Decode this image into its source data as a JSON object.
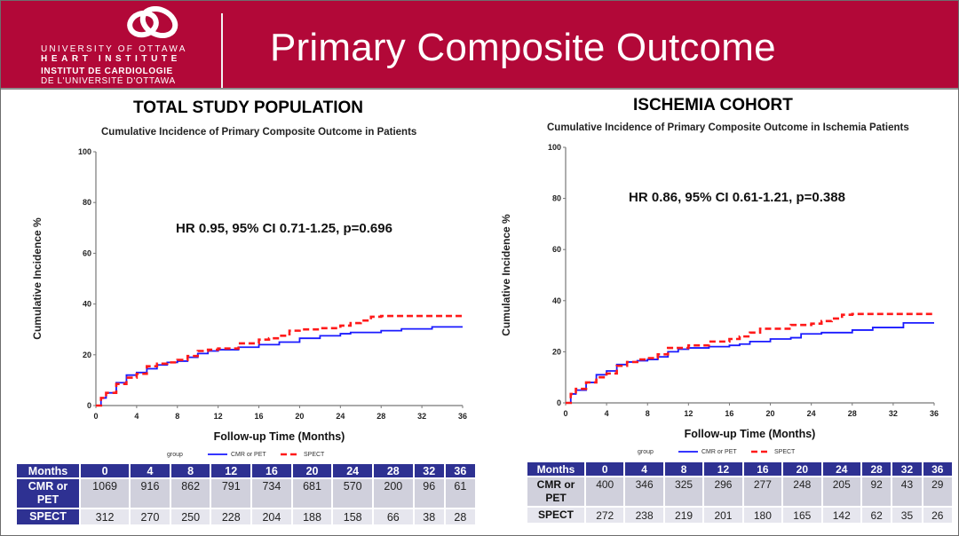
{
  "header": {
    "logo_lines": [
      "UNIVERSITY OF OTTAWA",
      "HEART INSTITUTE",
      "INSTITUT DE CARDIOLOGIE",
      "DE L'UNIVERSITÉ D'OTTAWA"
    ],
    "logo_icon": "heart-rings-logo-icon",
    "title": "Primary Composite Outcome",
    "brand_color": "#b20838"
  },
  "sections": [
    {
      "title": "TOTAL STUDY POPULATION",
      "risk_table": {
        "header": [
          "Months",
          "0",
          "4",
          "8",
          "12",
          "16",
          "20",
          "24",
          "28",
          "32",
          "36"
        ],
        "rows": [
          {
            "label": "CMR or PET",
            "values": [
              "1069",
              "916",
              "862",
              "791",
              "734",
              "681",
              "570",
              "200",
              "96",
              "61"
            ]
          },
          {
            "label": "SPECT",
            "values": [
              "312",
              "270",
              "250",
              "228",
              "204",
              "188",
              "158",
              "66",
              "38",
              "28"
            ]
          }
        ]
      }
    },
    {
      "title": "ISCHEMIA COHORT",
      "risk_table": {
        "header": [
          "Months",
          "0",
          "4",
          "8",
          "12",
          "16",
          "20",
          "24",
          "28",
          "32",
          "36"
        ],
        "rows": [
          {
            "label": "CMR or PET",
            "values": [
              "400",
              "346",
              "325",
              "296",
              "277",
              "248",
              "205",
              "92",
              "43",
              "29"
            ]
          },
          {
            "label": "SPECT",
            "values": [
              "272",
              "238",
              "219",
              "201",
              "180",
              "165",
              "142",
              "62",
              "35",
              "26"
            ]
          }
        ]
      }
    }
  ],
  "chart_data": [
    {
      "type": "line",
      "title": "Cumulative Incidence of Primary Composite Outcome in Patients",
      "xlabel": "Follow-up Time (Months)",
      "ylabel": "Cumulative Incidence %",
      "xlim": [
        0,
        36
      ],
      "ylim": [
        0,
        100
      ],
      "xticks": [
        0,
        4,
        8,
        12,
        16,
        20,
        24,
        28,
        32,
        36
      ],
      "yticks": [
        0,
        20,
        40,
        60,
        80,
        100
      ],
      "grid": false,
      "annotation": "HR 0.95, 95% CI 0.71-1.25, p=0.696",
      "legend": {
        "title": "group",
        "position": "bottom"
      },
      "series": [
        {
          "name": "CMR or PET",
          "color": "#1a1aff",
          "style": "solid",
          "x": [
            0,
            0.5,
            1,
            2,
            3,
            4,
            5,
            6,
            7,
            8,
            9,
            10,
            11,
            12,
            14,
            16,
            18,
            20,
            22,
            24,
            25,
            27,
            28,
            30,
            33,
            36
          ],
          "y": [
            0,
            3,
            5,
            9,
            12,
            13,
            14.5,
            16,
            17,
            17.5,
            19,
            20.5,
            21.5,
            22,
            23,
            24,
            25,
            26.5,
            27.5,
            28.3,
            28.8,
            28.8,
            29.5,
            30.2,
            31,
            31
          ]
        },
        {
          "name": "SPECT",
          "color": "#ff1a1a",
          "style": "dashed",
          "x": [
            0,
            0.5,
            1,
            2,
            3,
            4,
            5,
            6,
            7,
            8,
            9,
            10,
            11,
            12,
            14,
            16,
            17,
            18,
            19,
            20,
            22,
            24,
            25,
            26,
            27,
            28,
            36
          ],
          "y": [
            0,
            3,
            5,
            8.5,
            11,
            12.5,
            15.5,
            16.5,
            17,
            18,
            19.5,
            21.5,
            22,
            22.5,
            24.5,
            26,
            26.5,
            27.5,
            29.5,
            30,
            30.5,
            31.5,
            32.5,
            33.5,
            35,
            35.3,
            35.3
          ]
        }
      ]
    },
    {
      "type": "line",
      "title": "Cumulative Incidence of Primary Composite Outcome in Ischemia Patients",
      "xlabel": "Follow-up Time (Months)",
      "ylabel": "Cumulative Incidence %",
      "xlim": [
        0,
        36
      ],
      "ylim": [
        0,
        100
      ],
      "xticks": [
        0,
        4,
        8,
        12,
        16,
        20,
        24,
        28,
        32,
        36
      ],
      "yticks": [
        0,
        20,
        40,
        60,
        80,
        100
      ],
      "grid": false,
      "annotation": "HR 0.86, 95% CI 0.61-1.21, p=0.388",
      "legend": {
        "title": "group",
        "position": "bottom"
      },
      "series": [
        {
          "name": "CMR or PET",
          "color": "#1a1aff",
          "style": "solid",
          "x": [
            0,
            0.5,
            1,
            2,
            3,
            4,
            5,
            6,
            7,
            8,
            9,
            10,
            11,
            12,
            14,
            16,
            17,
            18,
            20,
            22,
            23,
            25,
            28,
            30,
            33,
            36
          ],
          "y": [
            0,
            3.5,
            5,
            8,
            11,
            12.5,
            15,
            16,
            16.5,
            17,
            18,
            20,
            21,
            21.5,
            22,
            22.5,
            23,
            24,
            25,
            25.5,
            27,
            27.5,
            28.5,
            29.5,
            31.3,
            31.3
          ]
        },
        {
          "name": "SPECT",
          "color": "#ff1a1a",
          "style": "dashed",
          "x": [
            0,
            0.5,
            1,
            2,
            3,
            4,
            5,
            6,
            7,
            8,
            9,
            10,
            12,
            14,
            16,
            17,
            18,
            19,
            20,
            22,
            24,
            25,
            26,
            27,
            28,
            36
          ],
          "y": [
            0,
            3.5,
            5.5,
            8,
            10,
            11.5,
            14.5,
            16,
            17,
            17.5,
            19,
            21.5,
            22.5,
            24,
            25,
            26,
            27.5,
            29,
            29,
            30.5,
            31,
            32,
            33,
            34.5,
            34.8,
            34.8
          ]
        }
      ]
    }
  ]
}
